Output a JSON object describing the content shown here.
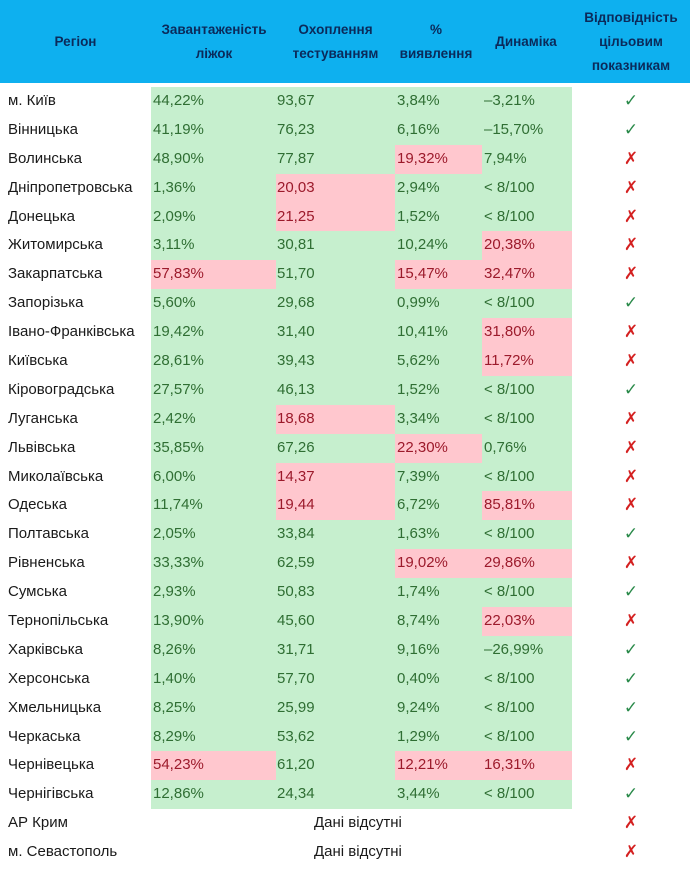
{
  "header": {
    "region": "Регіон",
    "beds_line1": "Завантаженість",
    "beds_line2": "ліжок",
    "testing_line1": "Охоплення",
    "testing_line2": "тестуванням",
    "detection_line1": "%",
    "detection_line2": "виявлення",
    "dynamics": "Динаміка",
    "compliance_line1": "Відповідність",
    "compliance_line2": "цільовим",
    "compliance_line3": "показникам"
  },
  "colors": {
    "header_bg": "#0eb0ef",
    "good_bg": "#c6efce",
    "good_text": "#2f6e33",
    "bad_bg": "#ffc7ce",
    "bad_text": "#9c1a2b",
    "check": "#2a8a4a",
    "cross": "#d42020"
  },
  "symbols": {
    "ok": "✓",
    "bad": "✗"
  },
  "rows": [
    {
      "region": "м. Київ",
      "beds": "44,22%",
      "beds_s": "g",
      "testing": "93,67",
      "testing_s": "g",
      "detection": "3,84%",
      "detection_s": "g",
      "dynamics": "–3,21%",
      "dynamics_s": "g",
      "compliance": "ok"
    },
    {
      "region": "Вінницька",
      "beds": "41,19%",
      "beds_s": "g",
      "testing": "76,23",
      "testing_s": "g",
      "detection": "6,16%",
      "detection_s": "g",
      "dynamics": "–15,70%",
      "dynamics_s": "g",
      "compliance": "ok"
    },
    {
      "region": "Волинська",
      "beds": "48,90%",
      "beds_s": "g",
      "testing": "77,87",
      "testing_s": "g",
      "detection": "19,32%",
      "detection_s": "r",
      "dynamics": "7,94%",
      "dynamics_s": "g",
      "compliance": "bad"
    },
    {
      "region": "Дніпропетровська",
      "beds": "1,36%",
      "beds_s": "g",
      "testing": "20,03",
      "testing_s": "r",
      "detection": "2,94%",
      "detection_s": "g",
      "dynamics": "< 8/100",
      "dynamics_s": "g",
      "compliance": "bad"
    },
    {
      "region": "Донецька",
      "beds": "2,09%",
      "beds_s": "g",
      "testing": "21,25",
      "testing_s": "r",
      "detection": "1,52%",
      "detection_s": "g",
      "dynamics": "< 8/100",
      "dynamics_s": "g",
      "compliance": "bad"
    },
    {
      "region": "Житомирська",
      "beds": "3,11%",
      "beds_s": "g",
      "testing": "30,81",
      "testing_s": "g",
      "detection": "10,24%",
      "detection_s": "g",
      "dynamics": "20,38%",
      "dynamics_s": "r",
      "compliance": "bad"
    },
    {
      "region": "Закарпатська",
      "beds": "57,83%",
      "beds_s": "r",
      "testing": "51,70",
      "testing_s": "g",
      "detection": "15,47%",
      "detection_s": "r",
      "dynamics": "32,47%",
      "dynamics_s": "r",
      "compliance": "bad"
    },
    {
      "region": "Запорізька",
      "beds": "5,60%",
      "beds_s": "g",
      "testing": "29,68",
      "testing_s": "g",
      "detection": "0,99%",
      "detection_s": "g",
      "dynamics": "< 8/100",
      "dynamics_s": "g",
      "compliance": "ok"
    },
    {
      "region": "Івано-Франківська",
      "beds": "19,42%",
      "beds_s": "g",
      "testing": "31,40",
      "testing_s": "g",
      "detection": "10,41%",
      "detection_s": "g",
      "dynamics": "31,80%",
      "dynamics_s": "r",
      "compliance": "bad"
    },
    {
      "region": "Київська",
      "beds": "28,61%",
      "beds_s": "g",
      "testing": "39,43",
      "testing_s": "g",
      "detection": "5,62%",
      "detection_s": "g",
      "dynamics": "11,72%",
      "dynamics_s": "r",
      "compliance": "bad"
    },
    {
      "region": "Кіровоградська",
      "beds": "27,57%",
      "beds_s": "g",
      "testing": "46,13",
      "testing_s": "g",
      "detection": "1,52%",
      "detection_s": "g",
      "dynamics": "< 8/100",
      "dynamics_s": "g",
      "compliance": "ok"
    },
    {
      "region": "Луганська",
      "beds": "2,42%",
      "beds_s": "g",
      "testing": "18,68",
      "testing_s": "r",
      "detection": "3,34%",
      "detection_s": "g",
      "dynamics": "< 8/100",
      "dynamics_s": "g",
      "compliance": "bad"
    },
    {
      "region": "Львівська",
      "beds": "35,85%",
      "beds_s": "g",
      "testing": "67,26",
      "testing_s": "g",
      "detection": "22,30%",
      "detection_s": "r",
      "dynamics": "0,76%",
      "dynamics_s": "g",
      "compliance": "bad"
    },
    {
      "region": "Миколаївська",
      "beds": "6,00%",
      "beds_s": "g",
      "testing": "14,37",
      "testing_s": "r",
      "detection": "7,39%",
      "detection_s": "g",
      "dynamics": "< 8/100",
      "dynamics_s": "g",
      "compliance": "bad"
    },
    {
      "region": "Одеська",
      "beds": "11,74%",
      "beds_s": "g",
      "testing": "19,44",
      "testing_s": "r",
      "detection": "6,72%",
      "detection_s": "g",
      "dynamics": "85,81%",
      "dynamics_s": "r",
      "compliance": "bad"
    },
    {
      "region": "Полтавська",
      "beds": "2,05%",
      "beds_s": "g",
      "testing": "33,84",
      "testing_s": "g",
      "detection": "1,63%",
      "detection_s": "g",
      "dynamics": "< 8/100",
      "dynamics_s": "g",
      "compliance": "ok"
    },
    {
      "region": "Рівненська",
      "beds": "33,33%",
      "beds_s": "g",
      "testing": "62,59",
      "testing_s": "g",
      "detection": "19,02%",
      "detection_s": "r",
      "dynamics": "29,86%",
      "dynamics_s": "r",
      "compliance": "bad"
    },
    {
      "region": "Сумська",
      "beds": "2,93%",
      "beds_s": "g",
      "testing": "50,83",
      "testing_s": "g",
      "detection": "1,74%",
      "detection_s": "g",
      "dynamics": "< 8/100",
      "dynamics_s": "g",
      "compliance": "ok"
    },
    {
      "region": "Тернопільська",
      "beds": "13,90%",
      "beds_s": "g",
      "testing": "45,60",
      "testing_s": "g",
      "detection": "8,74%",
      "detection_s": "g",
      "dynamics": "22,03%",
      "dynamics_s": "r",
      "compliance": "bad"
    },
    {
      "region": "Харківська",
      "beds": "8,26%",
      "beds_s": "g",
      "testing": "31,71",
      "testing_s": "g",
      "detection": "9,16%",
      "detection_s": "g",
      "dynamics": "–26,99%",
      "dynamics_s": "g",
      "compliance": "ok"
    },
    {
      "region": "Херсонська",
      "beds": "1,40%",
      "beds_s": "g",
      "testing": "57,70",
      "testing_s": "g",
      "detection": "0,40%",
      "detection_s": "g",
      "dynamics": "< 8/100",
      "dynamics_s": "g",
      "compliance": "ok"
    },
    {
      "region": "Хмельницька",
      "beds": "8,25%",
      "beds_s": "g",
      "testing": "25,99",
      "testing_s": "g",
      "detection": "9,24%",
      "detection_s": "g",
      "dynamics": "< 8/100",
      "dynamics_s": "g",
      "compliance": "ok"
    },
    {
      "region": "Черкаська",
      "beds": "8,29%",
      "beds_s": "g",
      "testing": "53,62",
      "testing_s": "g",
      "detection": "1,29%",
      "detection_s": "g",
      "dynamics": "< 8/100",
      "dynamics_s": "g",
      "compliance": "ok"
    },
    {
      "region": "Чернівецька",
      "beds": "54,23%",
      "beds_s": "r",
      "testing": "61,20",
      "testing_s": "g",
      "detection": "12,21%",
      "detection_s": "r",
      "dynamics": "16,31%",
      "dynamics_s": "r",
      "compliance": "bad"
    },
    {
      "region": "Чернігівська",
      "beds": "12,86%",
      "beds_s": "g",
      "testing": "24,34",
      "testing_s": "g",
      "detection": "3,44%",
      "detection_s": "g",
      "dynamics": "< 8/100",
      "dynamics_s": "g",
      "compliance": "ok"
    }
  ],
  "nodata_rows": [
    {
      "region": "АР Крим",
      "text": "Дані відсутні",
      "compliance": "bad"
    },
    {
      "region": "м. Севастополь",
      "text": "Дані відсутні",
      "compliance": "bad"
    }
  ]
}
